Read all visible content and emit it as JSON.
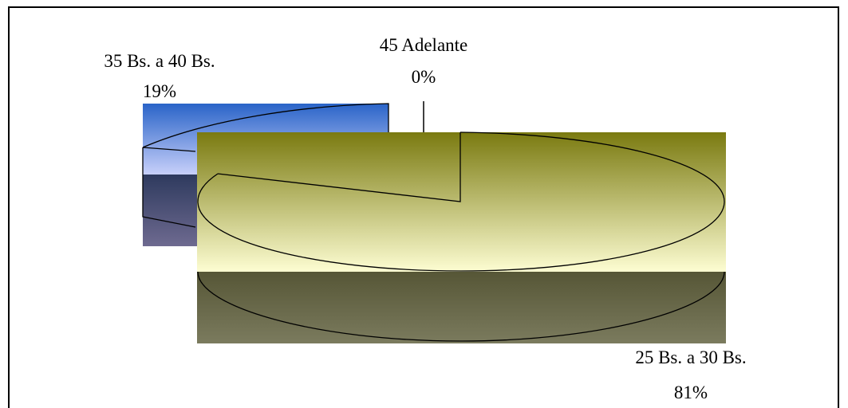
{
  "chart_data": {
    "type": "pie",
    "style": "3d-exploded",
    "slices": [
      {
        "label": "25 Bs. a 30 Bs.",
        "percent_label": "81%",
        "value": 81,
        "fill_top": "#7a7a10",
        "fill_bottom": "#fdfdd2",
        "side_top": "#565636",
        "side_bottom": "#7b7b5e"
      },
      {
        "label": "35 Bs. a 40 Bs.",
        "percent_label": "19%",
        "value": 19,
        "fill_top": "#2a64c8",
        "fill_bottom": "#c8d0fa",
        "side_top": "#2e3a5e",
        "side_bottom": "#6e6a90"
      },
      {
        "label": "45 Adelante",
        "percent_label": "0%",
        "value": 0
      }
    ],
    "legend": "none",
    "grid": false
  }
}
